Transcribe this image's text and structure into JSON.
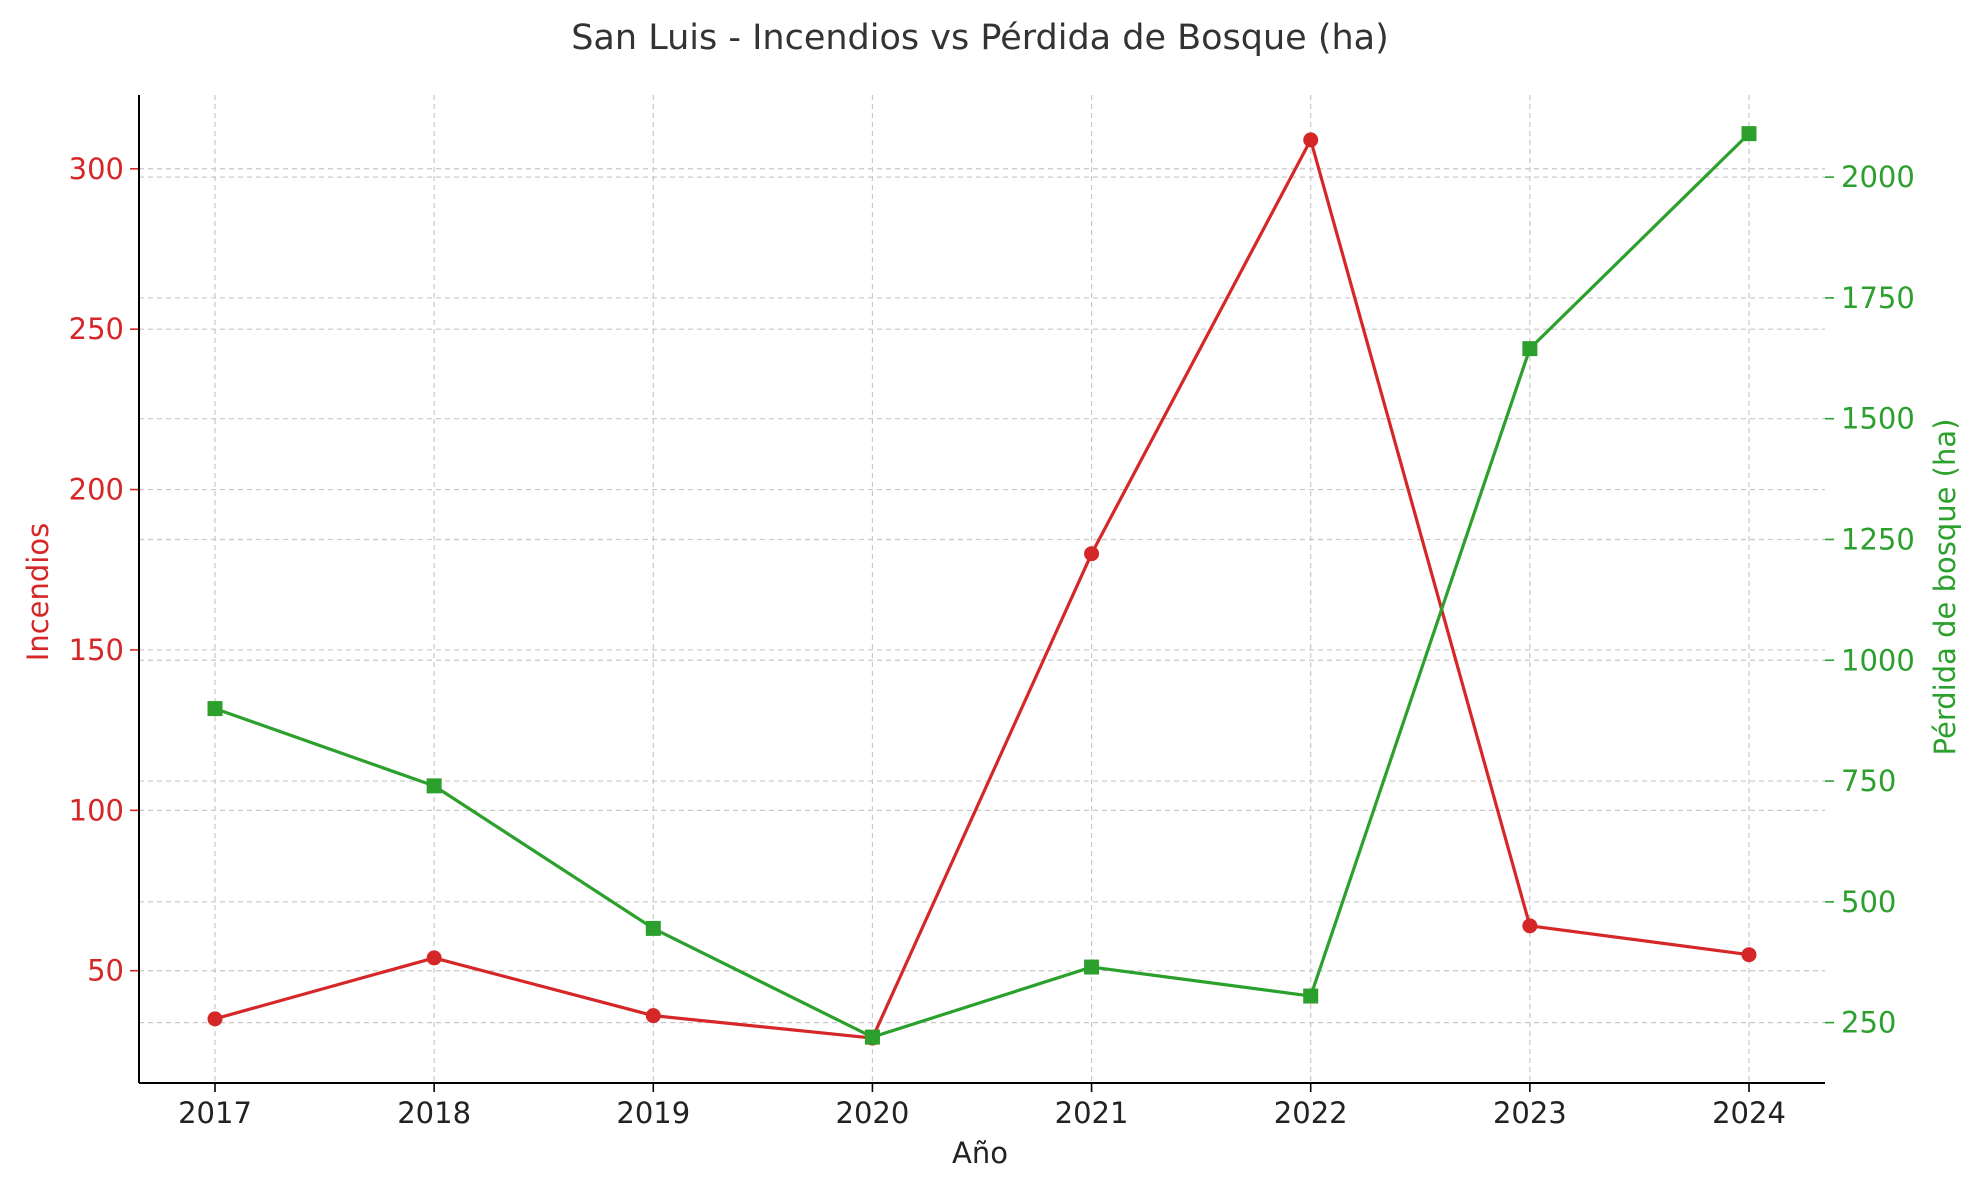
{
  "chart_data": {
    "type": "line",
    "title": "San Luis - Incendios vs Pérdida de Bosque (ha)",
    "xlabel": "Año",
    "ylabel_left": "Incendios",
    "ylabel_right": "Pérdida de bosque (ha)",
    "x": [
      2017,
      2018,
      2019,
      2020,
      2021,
      2022,
      2023,
      2024
    ],
    "x_ticks": [
      "2017",
      "2018",
      "2019",
      "2020",
      "2021",
      "2022",
      "2023",
      "2024"
    ],
    "y_left_ticks": [
      50,
      100,
      150,
      200,
      250,
      300
    ],
    "y_right_ticks": [
      250,
      500,
      750,
      1000,
      1250,
      1500,
      1750,
      2000
    ],
    "ylim_left": [
      15,
      323
    ],
    "ylim_right": [
      125,
      2170
    ],
    "grid": true,
    "series": [
      {
        "axis": "left",
        "color": "#d62728",
        "marker": "circle",
        "values": [
          35,
          54,
          36,
          29,
          180,
          309,
          64,
          55
        ]
      },
      {
        "axis": "right",
        "color": "#2ca02c",
        "marker": "square",
        "values": [
          900,
          740,
          445,
          220,
          365,
          305,
          1645,
          2090
        ]
      }
    ]
  }
}
